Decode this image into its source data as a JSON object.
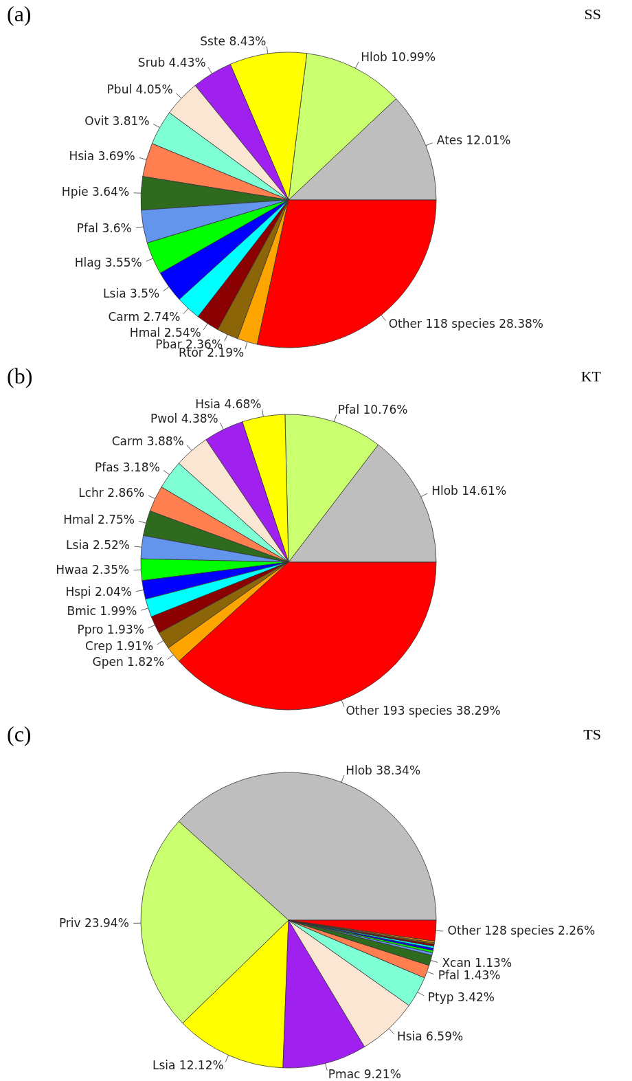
{
  "chart_data": [
    {
      "type": "pie",
      "title": "(a)",
      "subtitle": "SS",
      "value_labels": [
        "12.01%",
        "10.99%",
        "8.43%",
        "4.43%",
        "4.05%",
        "3.81%",
        "3.69%",
        "3.64%",
        "3.6%",
        "3.55%",
        "3.5%",
        "2.74%",
        "2.54%",
        "2.36%",
        "2.19%",
        "28.38%"
      ],
      "categories": [
        "Ates",
        "Hlob",
        "Sste",
        "Srub",
        "Pbul",
        "Ovit",
        "Hsia",
        "Hpie",
        "Pfal",
        "Hlag",
        "Lsia",
        "Carm",
        "Hmal",
        "Pbar",
        "Rtor",
        "Other 118 species"
      ],
      "values": [
        12.01,
        10.99,
        8.43,
        4.43,
        4.05,
        3.81,
        3.69,
        3.64,
        3.6,
        3.55,
        3.5,
        2.74,
        2.54,
        2.36,
        2.19,
        28.38
      ],
      "colors": [
        "#bebebe",
        "#caff70",
        "#ffff00",
        "#a020f0",
        "#fae6d2",
        "#7fffd4",
        "#ff7f50",
        "#2e6b1e",
        "#6495ed",
        "#00ff00",
        "#0000ff",
        "#00ffff",
        "#8b0000",
        "#8b6508",
        "#ffa500",
        "#ff0000"
      ]
    },
    {
      "type": "pie",
      "title": "(b)",
      "subtitle": "KT",
      "value_labels": [
        "14.61%",
        "10.76%",
        "4.68%",
        "4.38%",
        "3.88%",
        "3.18%",
        "2.86%",
        "2.75%",
        "2.52%",
        "2.35%",
        "2.04%",
        "1.99%",
        "1.93%",
        "1.91%",
        "1.82%",
        "38.29%"
      ],
      "categories": [
        "Hlob",
        "Pfal",
        "Hsia",
        "Pwol",
        "Carm",
        "Pfas",
        "Lchr",
        "Hmal",
        "Lsia",
        "Hwaa",
        "Hspi",
        "Bmic",
        "Ppro",
        "Crep",
        "Gpen",
        "Other 193 species"
      ],
      "values": [
        14.61,
        10.76,
        4.68,
        4.38,
        3.88,
        3.18,
        2.86,
        2.75,
        2.52,
        2.35,
        2.04,
        1.99,
        1.93,
        1.91,
        1.82,
        38.29
      ],
      "colors": [
        "#bebebe",
        "#caff70",
        "#ffff00",
        "#a020f0",
        "#fae6d2",
        "#7fffd4",
        "#ff7f50",
        "#2e6b1e",
        "#6495ed",
        "#00ff00",
        "#0000ff",
        "#00ffff",
        "#8b0000",
        "#8b6508",
        "#ffa500",
        "#ff0000"
      ]
    },
    {
      "type": "pie",
      "title": "(c)",
      "subtitle": "TS",
      "value_labels": [
        "38.34%",
        "23.94%",
        "12.12%",
        "9.21%",
        "6.59%",
        "3.42%",
        "1.43%",
        "1.13%",
        null,
        null,
        null,
        null,
        null,
        null,
        null,
        "2.26%"
      ],
      "categories": [
        "Hlob",
        "Priv",
        "Lsia",
        "Pmac",
        "Hsia",
        "Ptyp",
        "Pfal",
        "Xcan",
        null,
        null,
        null,
        null,
        null,
        null,
        null,
        "Other 128 species"
      ],
      "values": [
        38.34,
        23.94,
        12.12,
        9.21,
        6.59,
        3.42,
        1.43,
        1.13,
        0.29,
        0.25,
        0.24,
        0.22,
        0.21,
        0.18,
        0.17,
        2.26
      ],
      "colors": [
        "#bebebe",
        "#caff70",
        "#ffff00",
        "#a020f0",
        "#fae6d2",
        "#7fffd4",
        "#ff7f50",
        "#2e6b1e",
        "#6495ed",
        "#00ff00",
        "#0000ff",
        "#00ffff",
        "#8b0000",
        "#8b6508",
        "#ffa500",
        "#ff0000"
      ]
    }
  ]
}
